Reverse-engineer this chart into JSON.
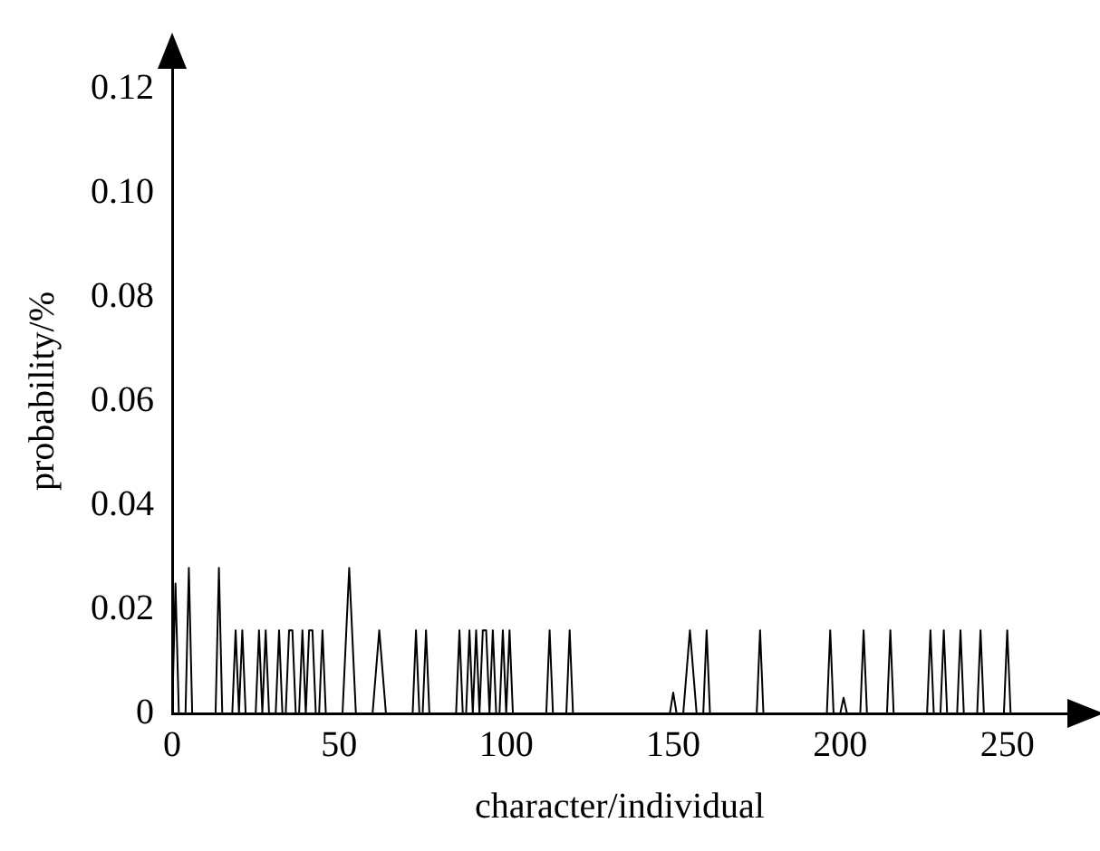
{
  "chart_data": {
    "type": "line",
    "xlabel": "character/individual",
    "ylabel": "probability/%",
    "xlim": [
      0,
      268
    ],
    "xticks": [
      0,
      50,
      100,
      150,
      200,
      250
    ],
    "ylim": [
      0,
      0.124
    ],
    "yticks": [
      0,
      {
        "value": 0.02,
        "label": "0.02"
      },
      {
        "value": 0.04,
        "label": "0.04"
      },
      {
        "value": 0.06,
        "label": "0.06"
      },
      {
        "value": 0.08,
        "label": "0.08"
      },
      {
        "value": 0.1,
        "label": "0.10"
      },
      {
        "value": 0.12,
        "label": "0.12"
      }
    ],
    "grid": false,
    "legend": false,
    "marker": "none",
    "line_style": "solid",
    "series": [
      {
        "color": "#000000",
        "x": [
          0,
          1,
          2,
          4,
          5,
          6,
          13,
          14,
          15,
          18,
          19,
          20,
          21,
          22,
          25,
          26,
          27,
          28,
          29,
          31,
          32,
          33,
          34,
          35,
          36,
          37,
          38,
          39,
          40,
          41,
          42,
          43,
          44,
          45,
          46,
          51,
          53,
          55,
          60,
          62,
          64,
          72,
          73,
          74,
          75,
          76,
          77,
          85,
          86,
          87,
          88,
          89,
          90,
          91,
          92,
          93,
          94,
          95,
          96,
          97,
          98,
          99,
          100,
          101,
          102,
          112,
          113,
          114,
          118,
          119,
          120,
          149,
          150,
          151,
          153,
          155,
          157,
          159,
          160,
          161,
          175,
          176,
          177,
          196,
          197,
          198,
          200,
          201,
          202,
          206,
          207,
          208,
          214,
          215,
          216,
          226,
          227,
          228,
          230,
          231,
          232,
          235,
          236,
          237,
          241,
          242,
          243,
          249,
          250,
          251
        ],
        "values": [
          0,
          0.025,
          0,
          0,
          0.028,
          0,
          0,
          0.028,
          0,
          0,
          0.016,
          0,
          0.016,
          0,
          0,
          0.016,
          0,
          0.016,
          0,
          0,
          0.016,
          0,
          0,
          0.016,
          0.016,
          0,
          0,
          0.016,
          0,
          0.016,
          0.016,
          0,
          0,
          0.016,
          0,
          0,
          0.028,
          0,
          0,
          0.016,
          0,
          0,
          0.016,
          0,
          0,
          0.016,
          0,
          0,
          0.016,
          0,
          0,
          0.016,
          0,
          0.016,
          0,
          0.016,
          0.016,
          0,
          0.016,
          0,
          0,
          0.016,
          0,
          0.016,
          0,
          0,
          0.016,
          0,
          0,
          0.016,
          0,
          0,
          0.004,
          0,
          0,
          0.016,
          0,
          0,
          0.016,
          0,
          0,
          0.016,
          0,
          0,
          0.016,
          0,
          0,
          0.003,
          0,
          0,
          0.016,
          0,
          0,
          0.016,
          0,
          0,
          0.016,
          0,
          0,
          0.016,
          0,
          0,
          0.016,
          0,
          0,
          0.016,
          0,
          0,
          0.016,
          0
        ]
      }
    ]
  }
}
